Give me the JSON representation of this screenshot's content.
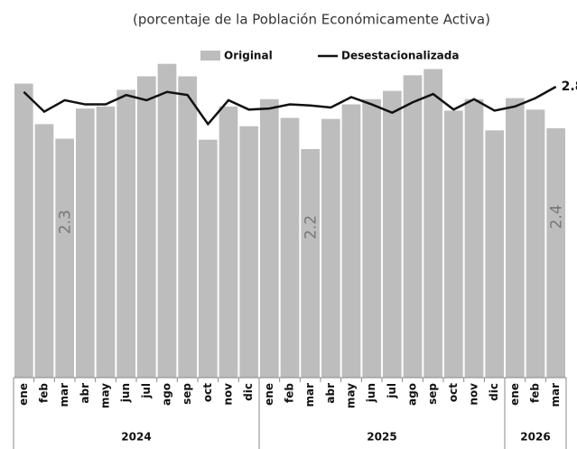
{
  "chart_data": {
    "type": "bar_line",
    "subtitle": "(porcentaje de la Población Económicamente Activa)",
    "categories": [
      "ene",
      "feb",
      "mar",
      "abr",
      "may",
      "jun",
      "jul",
      "ago",
      "sep",
      "oct",
      "nov",
      "dic",
      "ene",
      "feb",
      "mar",
      "abr",
      "may",
      "jun",
      "jul",
      "ago",
      "sep",
      "oct",
      "nov",
      "dic",
      "ene",
      "feb",
      "mar"
    ],
    "groups": [
      {
        "name": "2024",
        "count": 12
      },
      {
        "name": "2025",
        "count": 12
      },
      {
        "name": "2026",
        "count": 3
      }
    ],
    "series": [
      {
        "name": "Original",
        "color": "#bdbdbd",
        "kind": "bar",
        "values": [
          2.83,
          2.44,
          2.3,
          2.59,
          2.61,
          2.77,
          2.9,
          3.02,
          2.9,
          2.29,
          2.61,
          2.42,
          2.68,
          2.5,
          2.2,
          2.49,
          2.63,
          2.68,
          2.76,
          2.91,
          2.97,
          2.57,
          2.68,
          2.38,
          2.69,
          2.58,
          2.4
        ],
        "value_labels": [
          null,
          null,
          "2.3",
          null,
          null,
          null,
          null,
          null,
          null,
          null,
          null,
          null,
          null,
          null,
          "2.2",
          null,
          null,
          null,
          null,
          null,
          null,
          null,
          null,
          null,
          null,
          null,
          "2.4"
        ]
      },
      {
        "name": "Desestacionalizada",
        "color": "#111111",
        "kind": "line",
        "values": [
          2.75,
          2.56,
          2.67,
          2.63,
          2.63,
          2.72,
          2.67,
          2.75,
          2.72,
          2.44,
          2.67,
          2.58,
          2.59,
          2.63,
          2.62,
          2.6,
          2.7,
          2.63,
          2.55,
          2.65,
          2.73,
          2.58,
          2.68,
          2.57,
          2.61,
          2.69,
          2.8
        ],
        "value_labels": [
          null,
          null,
          null,
          null,
          null,
          null,
          null,
          null,
          null,
          null,
          null,
          null,
          null,
          null,
          null,
          null,
          null,
          null,
          null,
          null,
          null,
          null,
          null,
          null,
          null,
          null,
          "2.8"
        ]
      }
    ],
    "ylim": [
      0,
      3.2
    ]
  }
}
